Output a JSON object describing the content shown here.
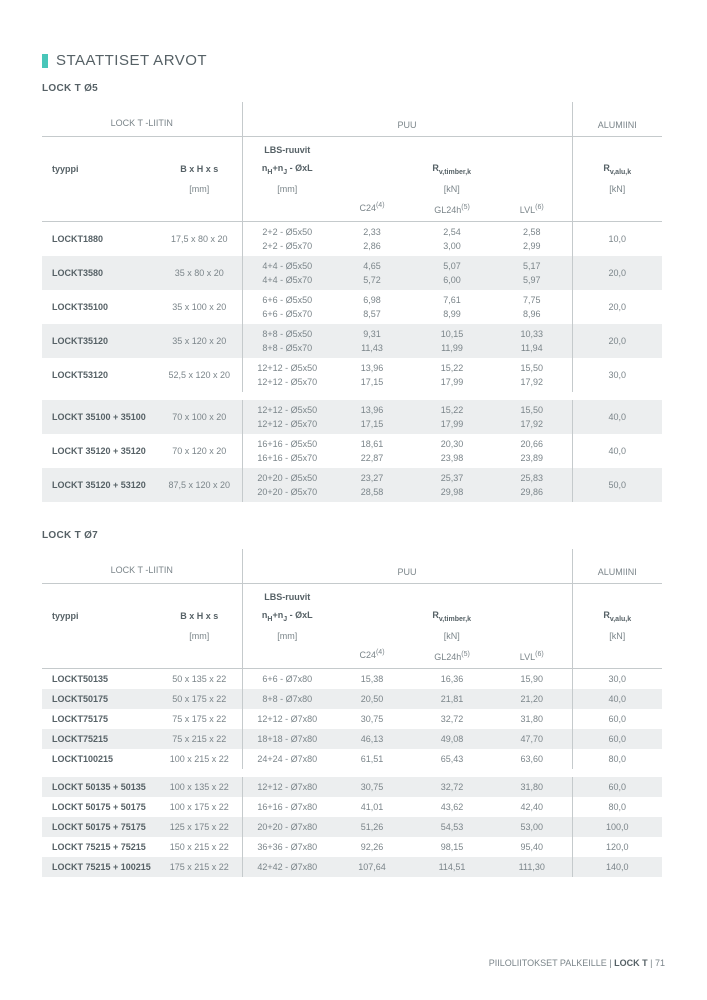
{
  "title": "STAATTISET ARVOT",
  "section1": {
    "title": "LOCK T Ø5",
    "headers": {
      "liitin": "LOCK T -LIITIN",
      "puu": "PUU",
      "alu": "ALUMIINI",
      "type": "tyyppi",
      "dim": "B x H x s",
      "screws": "LBS-ruuvit",
      "screws2_pre": "n",
      "screws2_h": "H",
      "screws2_mid": "+n",
      "screws2_j": "J",
      "screws2_post": " - ØxL",
      "mm": "[mm]",
      "rvtimber_pre": "R",
      "rvtimber_sub": "v,timber,k",
      "kn": "[kN]",
      "c24": "C24",
      "c24_sup": "(4)",
      "gl24": "GL24h",
      "gl24_sup": "(5)",
      "lvl": "LVL",
      "lvl_sup": "(6)",
      "rvalu_pre": "R",
      "rvalu_sub": "v,alu,k"
    },
    "rowsA": [
      {
        "type": "LOCKT1880",
        "dim": "17,5 x 80 x 20",
        "s": [
          "2+2 - Ø5x50",
          "2+2 - Ø5x70"
        ],
        "c24": [
          "2,33",
          "2,86"
        ],
        "gl": [
          "2,54",
          "3,00"
        ],
        "lvl": [
          "2,58",
          "2,99"
        ],
        "alu": "10,0"
      },
      {
        "type": "LOCKT3580",
        "dim": "35 x 80 x 20",
        "s": [
          "4+4 - Ø5x50",
          "4+4 - Ø5x70"
        ],
        "c24": [
          "4,65",
          "5,72"
        ],
        "gl": [
          "5,07",
          "6,00"
        ],
        "lvl": [
          "5,17",
          "5,97"
        ],
        "alu": "20,0"
      },
      {
        "type": "LOCKT35100",
        "dim": "35 x 100 x 20",
        "s": [
          "6+6 - Ø5x50",
          "6+6 - Ø5x70"
        ],
        "c24": [
          "6,98",
          "8,57"
        ],
        "gl": [
          "7,61",
          "8,99"
        ],
        "lvl": [
          "7,75",
          "8,96"
        ],
        "alu": "20,0"
      },
      {
        "type": "LOCKT35120",
        "dim": "35 x 120 x 20",
        "s": [
          "8+8 - Ø5x50",
          "8+8 - Ø5x70"
        ],
        "c24": [
          "9,31",
          "11,43"
        ],
        "gl": [
          "10,15",
          "11,99"
        ],
        "lvl": [
          "10,33",
          "11,94"
        ],
        "alu": "20,0"
      },
      {
        "type": "LOCKT53120",
        "dim": "52,5 x 120 x 20",
        "s": [
          "12+12 - Ø5x50",
          "12+12 - Ø5x70"
        ],
        "c24": [
          "13,96",
          "17,15"
        ],
        "gl": [
          "15,22",
          "17,99"
        ],
        "lvl": [
          "15,50",
          "17,92"
        ],
        "alu": "30,0"
      }
    ],
    "rowsB": [
      {
        "type": "LOCKT 35100 + 35100",
        "dim": "70 x 100 x 20",
        "s": [
          "12+12 - Ø5x50",
          "12+12 - Ø5x70"
        ],
        "c24": [
          "13,96",
          "17,15"
        ],
        "gl": [
          "15,22",
          "17,99"
        ],
        "lvl": [
          "15,50",
          "17,92"
        ],
        "alu": "40,0"
      },
      {
        "type": "LOCKT 35120 + 35120",
        "dim": "70 x 120 x 20",
        "s": [
          "16+16 - Ø5x50",
          "16+16 - Ø5x70"
        ],
        "c24": [
          "18,61",
          "22,87"
        ],
        "gl": [
          "20,30",
          "23,98"
        ],
        "lvl": [
          "20,66",
          "23,89"
        ],
        "alu": "40,0"
      },
      {
        "type": "LOCKT 35120 + 53120",
        "dim": "87,5 x 120 x 20",
        "s": [
          "20+20 - Ø5x50",
          "20+20 - Ø5x70"
        ],
        "c24": [
          "23,27",
          "28,58"
        ],
        "gl": [
          "25,37",
          "29,98"
        ],
        "lvl": [
          "25,83",
          "29,86"
        ],
        "alu": "50,0"
      }
    ]
  },
  "section2": {
    "title": "LOCK T Ø7",
    "rowsA": [
      {
        "type": "LOCKT50135",
        "dim": "50 x 135 x 22",
        "s": "6+6 - Ø7x80",
        "c24": "15,38",
        "gl": "16,36",
        "lvl": "15,90",
        "alu": "30,0"
      },
      {
        "type": "LOCKT50175",
        "dim": "50 x 175 x 22",
        "s": "8+8 - Ø7x80",
        "c24": "20,50",
        "gl": "21,81",
        "lvl": "21,20",
        "alu": "40,0"
      },
      {
        "type": "LOCKT75175",
        "dim": "75 x 175 x 22",
        "s": "12+12 - Ø7x80",
        "c24": "30,75",
        "gl": "32,72",
        "lvl": "31,80",
        "alu": "60,0"
      },
      {
        "type": "LOCKT75215",
        "dim": "75 x 215 x 22",
        "s": "18+18 - Ø7x80",
        "c24": "46,13",
        "gl": "49,08",
        "lvl": "47,70",
        "alu": "60,0"
      },
      {
        "type": "LOCKT100215",
        "dim": "100 x 215 x 22",
        "s": "24+24 - Ø7x80",
        "c24": "61,51",
        "gl": "65,43",
        "lvl": "63,60",
        "alu": "80,0"
      }
    ],
    "rowsB": [
      {
        "type": "LOCKT 50135 + 50135",
        "dim": "100 x 135 x 22",
        "s": "12+12 - Ø7x80",
        "c24": "30,75",
        "gl": "32,72",
        "lvl": "31,80",
        "alu": "60,0"
      },
      {
        "type": "LOCKT 50175 + 50175",
        "dim": "100 x 175 x 22",
        "s": "16+16 - Ø7x80",
        "c24": "41,01",
        "gl": "43,62",
        "lvl": "42,40",
        "alu": "80,0"
      },
      {
        "type": "LOCKT 50175 + 75175",
        "dim": "125 x 175 x 22",
        "s": "20+20 - Ø7x80",
        "c24": "51,26",
        "gl": "54,53",
        "lvl": "53,00",
        "alu": "100,0"
      },
      {
        "type": "LOCKT 75215 + 75215",
        "dim": "150 x 215 x 22",
        "s": "36+36 - Ø7x80",
        "c24": "92,26",
        "gl": "98,15",
        "lvl": "95,40",
        "alu": "120,0"
      },
      {
        "type": "LOCKT 75215 + 100215",
        "dim": "175 x 215 x 22",
        "s": "42+42 - Ø7x80",
        "c24": "107,64",
        "gl": "114,51",
        "lvl": "111,30",
        "alu": "140,0"
      }
    ]
  },
  "footer": {
    "text1": "PIILOLIITOKSET PALKEILLE  |  ",
    "text2": "LOCK T",
    "text3": "  |  71"
  }
}
